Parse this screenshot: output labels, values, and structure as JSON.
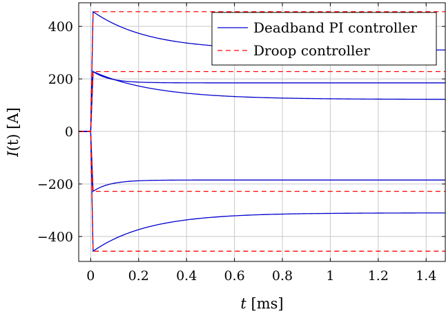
{
  "chart_data": {
    "type": "line",
    "title": "",
    "xlabel": {
      "var": "t",
      "unit": "[ms]"
    },
    "ylabel": {
      "var": "I",
      "arg": "(t)",
      "unit": "[A]"
    },
    "xlim": [
      -0.05,
      1.48
    ],
    "ylim": [
      -495,
      490
    ],
    "grid": true,
    "legend_position": "top-right",
    "xticks": [
      0,
      0.2,
      0.4,
      0.6,
      0.8,
      1,
      1.2,
      1.4
    ],
    "xtick_labels": [
      "0",
      "0.2",
      "0.4",
      "0.6",
      "0.8",
      "1",
      "1.2",
      "1.4"
    ],
    "yticks": [
      -400,
      -200,
      0,
      200,
      400
    ],
    "ytick_labels": [
      "−400",
      "−200",
      "0",
      "200",
      "400"
    ],
    "series": [
      {
        "name": "Deadband PI controller",
        "color": "#0000cc",
        "style": "solid",
        "curves": [
          {
            "initial": 0,
            "peak": 456,
            "final": 310,
            "tau": 0.23
          },
          {
            "initial": 0,
            "peak": 228,
            "final": 185,
            "tau": 0.07
          },
          {
            "initial": 0,
            "peak": 228,
            "final": 122,
            "tau": 0.26
          },
          {
            "initial": 0,
            "peak": -228,
            "final": -185,
            "tau": 0.07
          },
          {
            "initial": 0,
            "peak": -456,
            "final": -310,
            "tau": 0.23
          }
        ]
      },
      {
        "name": "Droop controller",
        "color": "#ff0000",
        "style": "dashed",
        "curves": [
          {
            "initial": 0,
            "peak": 456,
            "final": 456,
            "tau": 1
          },
          {
            "initial": 0,
            "peak": 228,
            "final": 228,
            "tau": 1
          },
          {
            "initial": 0,
            "peak": -228,
            "final": -228,
            "tau": 1
          },
          {
            "initial": 0,
            "peak": -456,
            "final": -456,
            "tau": 1
          }
        ]
      }
    ],
    "legend": [
      "Deadband PI controller",
      "Droop controller"
    ]
  }
}
